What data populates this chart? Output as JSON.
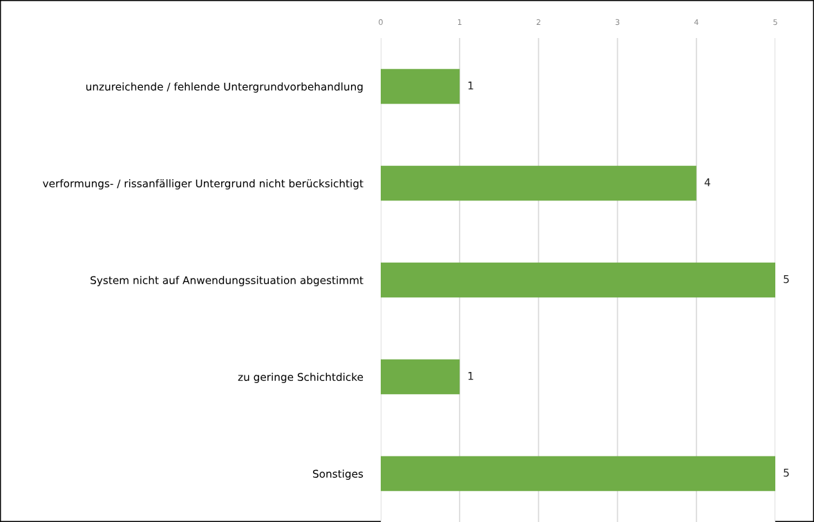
{
  "chart_data": {
    "type": "bar",
    "orientation": "horizontal",
    "categories": [
      "unzureichende / fehlende Untergrundvorbehandlung",
      "verformungs- / rissanfälliger Untergrund nicht berücksichtigt",
      "System nicht auf Anwendungssituation abgestimmt",
      "zu geringe Schichtdicke",
      "Sonstiges"
    ],
    "values": [
      1,
      4,
      5,
      1,
      5
    ],
    "color": "#70ad47",
    "xlim": [
      0,
      5
    ],
    "xticks": [
      0,
      1,
      2,
      3,
      4,
      5
    ],
    "grid": "x",
    "data_labels": true
  }
}
